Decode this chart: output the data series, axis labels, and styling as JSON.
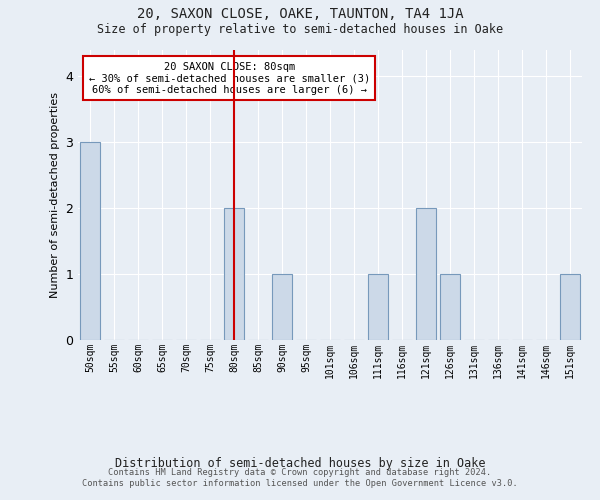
{
  "title1": "20, SAXON CLOSE, OAKE, TAUNTON, TA4 1JA",
  "title2": "Size of property relative to semi-detached houses in Oake",
  "xlabel": "Distribution of semi-detached houses by size in Oake",
  "ylabel": "Number of semi-detached properties",
  "categories": [
    "50sqm",
    "55sqm",
    "60sqm",
    "65sqm",
    "70sqm",
    "75sqm",
    "80sqm",
    "85sqm",
    "90sqm",
    "95sqm",
    "101sqm",
    "106sqm",
    "111sqm",
    "116sqm",
    "121sqm",
    "126sqm",
    "131sqm",
    "136sqm",
    "141sqm",
    "146sqm",
    "151sqm"
  ],
  "values": [
    3,
    0,
    0,
    0,
    0,
    0,
    2,
    0,
    1,
    0,
    0,
    0,
    1,
    0,
    2,
    1,
    0,
    0,
    0,
    0,
    1
  ],
  "highlight_index": 6,
  "bar_color": "#ccd9e8",
  "bar_edge_color": "#7799bb",
  "highlight_line_color": "#cc0000",
  "box_color": "#cc0000",
  "background_color": "#e8eef5",
  "ylim": [
    0,
    4.4
  ],
  "yticks": [
    0,
    1,
    2,
    3,
    4
  ],
  "annotation_title": "20 SAXON CLOSE: 80sqm",
  "annotation_line1": "← 30% of semi-detached houses are smaller (3)",
  "annotation_line2": "60% of semi-detached houses are larger (6) →",
  "footer1": "Contains HM Land Registry data © Crown copyright and database right 2024.",
  "footer2": "Contains public sector information licensed under the Open Government Licence v3.0."
}
